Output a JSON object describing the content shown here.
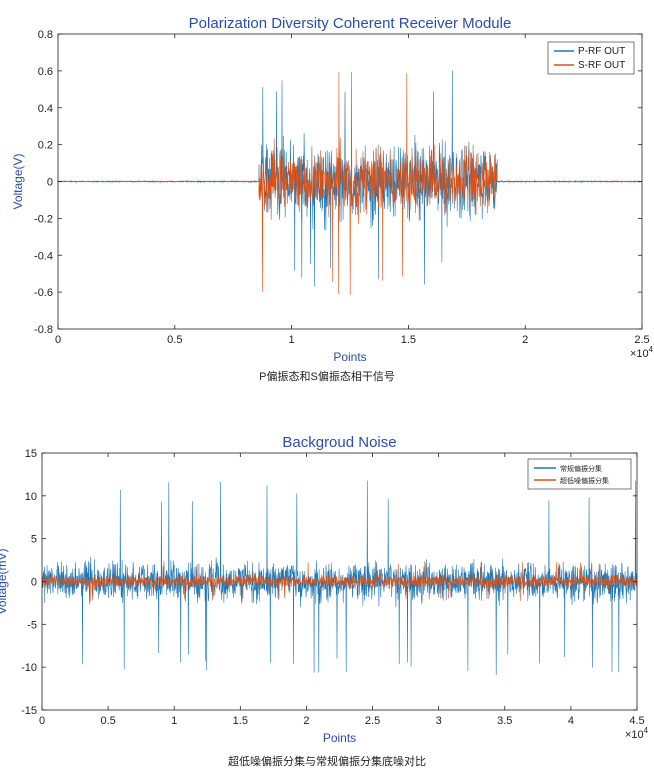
{
  "charts": [
    {
      "title": "Polarization Diversity Coherent Receiver Module",
      "xlabel": "Points",
      "ylabel": "Voltage(V)",
      "x_exponent": "×10",
      "x_exponent_power": "4",
      "xticks": [
        "0",
        "0.5",
        "1",
        "1.5",
        "2",
        "2.5"
      ],
      "yticks": [
        "0.8",
        "0.6",
        "0.4",
        "0.2",
        "0",
        "-0.2",
        "-0.4",
        "-0.6",
        "-0.8"
      ],
      "legend": [
        "P-RF OUT",
        "S-RF OUT"
      ],
      "caption": "P偏振态和S偏振态相干信号"
    },
    {
      "title": "Backgroud Noise",
      "xlabel": "Points",
      "ylabel": "Voltage(mV)",
      "x_exponent": "×10",
      "x_exponent_power": "4",
      "xticks": [
        "0",
        "0.5",
        "1",
        "1.5",
        "2",
        "2.5",
        "3",
        "3.5",
        "4",
        "4.5"
      ],
      "yticks": [
        "15",
        "10",
        "5",
        "0",
        "-5",
        "-10",
        "-15"
      ],
      "legend": [
        "常规偏振分集",
        "超低噪偏振分集"
      ],
      "caption": "超低噪偏振分集与常规偏振分集底噪对比"
    }
  ],
  "chart_data": [
    {
      "type": "line",
      "title": "Polarization Diversity Coherent Receiver Module",
      "xlabel": "Points",
      "ylabel": "Voltage(V)",
      "xlim": [
        0,
        25000
      ],
      "ylim": [
        -0.8,
        0.8
      ],
      "grid": false,
      "legend_position": "top-right",
      "series": [
        {
          "name": "P-RF OUT",
          "color": "#1f77b4",
          "segments": [
            {
              "x_range": [
                0,
                8600
              ],
              "amplitude": 0.01
            },
            {
              "x_range": [
                8600,
                18800
              ],
              "amplitude": 0.55,
              "peak_min": -0.58,
              "peak_max": 0.62
            },
            {
              "x_range": [
                18800,
                25000
              ],
              "amplitude": 0.01
            }
          ]
        },
        {
          "name": "S-RF OUT",
          "color": "#d95319",
          "segments": [
            {
              "x_range": [
                0,
                8600
              ],
              "amplitude": 0.008
            },
            {
              "x_range": [
                8600,
                18800
              ],
              "amplitude": 0.45,
              "peak_min": -0.63,
              "peak_max": 0.6
            },
            {
              "x_range": [
                18800,
                25000
              ],
              "amplitude": 0.008
            }
          ]
        }
      ]
    },
    {
      "type": "line",
      "title": "Backgroud Noise",
      "xlabel": "Points",
      "ylabel": "Voltage(mV)",
      "xlim": [
        0,
        45000
      ],
      "ylim": [
        -15,
        15
      ],
      "grid": false,
      "legend_position": "top-right",
      "series": [
        {
          "name": "常规偏振分集",
          "color": "#1f77b4",
          "amplitude": 6,
          "peak_min": -11,
          "peak_max": 12
        },
        {
          "name": "超低噪偏振分集",
          "color": "#d95319",
          "amplitude": 2,
          "peak_min": -2.5,
          "peak_max": 2.5
        }
      ]
    }
  ]
}
